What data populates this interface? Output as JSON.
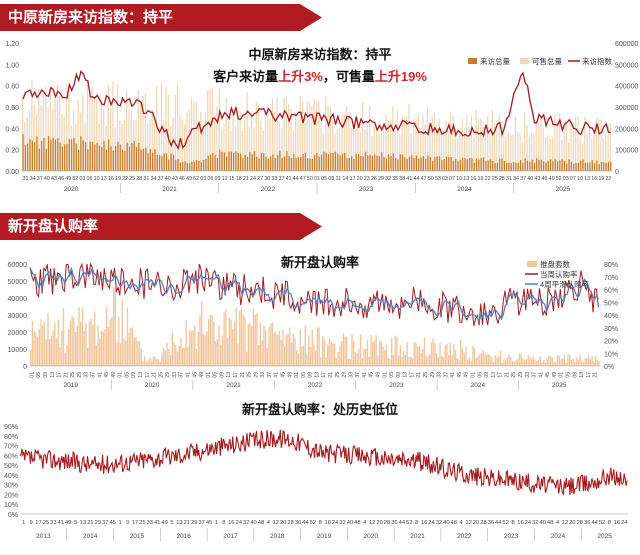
{
  "banners": {
    "section1": "中原新房来访指数：持平",
    "section2": "新开盘认购率"
  },
  "colors": {
    "banner": "#b31b22",
    "index_line": "#a8191c",
    "visits_bar": "#c87b2a",
    "inventory_bar": "#f1d6b7",
    "units_bar": "#f1c79e",
    "rate_line": "#a8191c",
    "avg_line": "#4a86c6",
    "highlight": "#d7242a"
  },
  "chart_data": [
    {
      "type": "bar",
      "title": "中原新房来访指数：持平",
      "subtitle_parts": [
        "客户来访量",
        "上升3%",
        "，可售量",
        "上升19%"
      ],
      "legend": [
        "来访总量",
        "可售总量",
        "来访指数"
      ],
      "y_left": {
        "min": 0,
        "max": 1.2,
        "ticks": [
          "0.00",
          "0.20",
          "0.40",
          "0.60",
          "0.80",
          "1.00",
          "1.20"
        ]
      },
      "y_right": {
        "min": 0,
        "max": 600000,
        "ticks": [
          "0",
          "100000",
          "200000",
          "300000",
          "400000",
          "500000",
          "600000"
        ]
      },
      "week_labels": [
        "31",
        "34",
        "37",
        "40",
        "43",
        "46",
        "49",
        "52",
        "03",
        "06",
        "10",
        "13",
        "16",
        "19",
        "22",
        "25",
        "28",
        "31",
        "34",
        "37",
        "40",
        "43",
        "46",
        "49",
        "52",
        "03",
        "06",
        "09",
        "12",
        "15",
        "18",
        "21",
        "24",
        "27",
        "30",
        "33",
        "37",
        "41",
        "44",
        "47",
        "50",
        "01",
        "05",
        "08",
        "11",
        "14",
        "17",
        "20",
        "23",
        "26",
        "29",
        "32",
        "35",
        "38",
        "41",
        "44",
        "47",
        "50",
        "53",
        "03",
        "07",
        "10",
        "13",
        "16",
        "19",
        "22",
        "25",
        "28",
        "31",
        "34",
        "37",
        "40",
        "43",
        "46",
        "49",
        "52",
        "03",
        "07",
        "10",
        "13",
        "16",
        "19",
        "22"
      ],
      "years": [
        "2020",
        "2021",
        "2022",
        "2023",
        "2024",
        "2025"
      ],
      "series": [
        {
          "name": "来访总量",
          "axis": "right"
        },
        {
          "name": "可售总量",
          "axis": "right"
        },
        {
          "name": "来访指数",
          "axis": "left"
        }
      ]
    },
    {
      "type": "bar",
      "title": "新开盘认购率",
      "legend": [
        "推盘套数",
        "当周认购率",
        "4周平滑认购率"
      ],
      "y_left": {
        "min": 0,
        "max": 60000,
        "ticks": [
          "0",
          "10000",
          "20000",
          "30000",
          "40000",
          "50000",
          "60000"
        ]
      },
      "y_right": {
        "min": 0,
        "max": 0.8,
        "ticks": [
          "0%",
          "10%",
          "20%",
          "30%",
          "40%",
          "50%",
          "60%",
          "70%",
          "80%"
        ]
      },
      "week_labels": [
        "01",
        "05",
        "09",
        "13",
        "17",
        "21",
        "25",
        "29",
        "33",
        "37",
        "41",
        "45",
        "49",
        "01",
        "05",
        "09",
        "13",
        "17",
        "21",
        "25",
        "29",
        "33",
        "37",
        "41",
        "45",
        "49",
        "01",
        "05",
        "09",
        "13",
        "17",
        "21",
        "25",
        "29",
        "33",
        "37",
        "41",
        "45",
        "49",
        "01",
        "05",
        "09",
        "13",
        "17",
        "21",
        "25",
        "29",
        "33",
        "37",
        "41",
        "45",
        "49",
        "01",
        "05",
        "09",
        "13",
        "17",
        "21",
        "25",
        "29",
        "33",
        "37",
        "41",
        "45",
        "49",
        "01",
        "05",
        "09",
        "13",
        "17",
        "21",
        "25",
        "29",
        "33",
        "37",
        "41",
        "45",
        "49",
        "01",
        "05",
        "09",
        "13",
        "17",
        "21"
      ],
      "years": [
        "2019",
        "2020",
        "2021",
        "2022",
        "2023",
        "2024",
        "2025"
      ]
    },
    {
      "type": "line",
      "title": "新开盘认购率：处历史低位",
      "y": {
        "min": 0,
        "max": 0.9,
        "ticks": [
          "0%",
          "10%",
          "20%",
          "30%",
          "40%",
          "50%",
          "60%",
          "70%",
          "80%",
          "90%"
        ]
      },
      "week_labels": [
        "1",
        "9",
        "17",
        "25",
        "33",
        "41",
        "49",
        "5",
        "13",
        "21",
        "29",
        "37",
        "45",
        "1",
        "9",
        "17",
        "25",
        "33",
        "41",
        "49",
        "5",
        "13",
        "21",
        "29",
        "37",
        "45",
        "1",
        "8",
        "16",
        "24",
        "32",
        "40",
        "48",
        "4",
        "12",
        "20",
        "28",
        "36",
        "44",
        "52",
        "8",
        "16",
        "24",
        "32",
        "40",
        "48",
        "4",
        "12",
        "20",
        "28",
        "36",
        "44",
        "52",
        "8",
        "16",
        "24",
        "32",
        "40",
        "48",
        "4",
        "12",
        "20",
        "28",
        "36",
        "44",
        "52",
        "8",
        "16",
        "24",
        "32",
        "40",
        "48",
        "4",
        "12",
        "20",
        "28",
        "36",
        "44",
        "52",
        "8",
        "16",
        "24"
      ],
      "years": [
        "2013",
        "2014",
        "2015",
        "2016",
        "2017",
        "2018",
        "2019",
        "2020",
        "2021",
        "2022",
        "2023",
        "2024",
        "2025"
      ],
      "series": [
        {
          "name": "当周认购率"
        }
      ]
    }
  ]
}
